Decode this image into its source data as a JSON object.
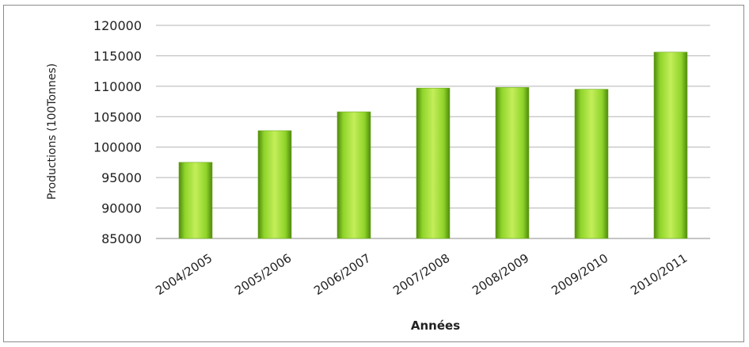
{
  "chart_data": {
    "type": "bar",
    "categories": [
      "2004/2005",
      "2005/2006",
      "2006/2007",
      "2007/2008",
      "2008/2009",
      "2009/2010",
      "2010/2011"
    ],
    "values": [
      97500,
      102700,
      105800,
      109700,
      109800,
      109500,
      115600
    ],
    "title": "",
    "xlabel": "Années",
    "ylabel": "Productions (100Tonnes)",
    "ylim": [
      85000,
      120000
    ],
    "yticks": [
      85000,
      90000,
      95000,
      100000,
      105000,
      110000,
      115000,
      120000
    ],
    "grid": true,
    "legend": "none",
    "colors": {
      "bar_light": "#c4ee5a",
      "bar_mid": "#8fd42a",
      "bar_dark": "#4f8a0c",
      "grid": "#b3b3b3"
    }
  }
}
